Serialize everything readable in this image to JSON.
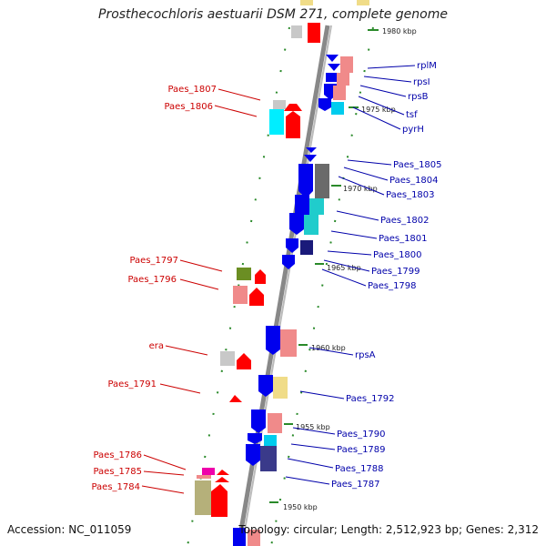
{
  "title": "Prosthecochloris aestuarii DSM 271, complete genome",
  "footer": {
    "accession": "Accession: NC_011059",
    "summary": "Topology: circular; Length: 2,512,923 bp; Genes: 2,312"
  },
  "colors": {
    "left_label": "#cc0000",
    "right_label": "#0000aa",
    "backbone": "#888888",
    "tick": "#2a8a2a"
  },
  "kbp_markers": [
    "1980 kbp",
    "1975 kbp",
    "1970 kbp",
    "1965 kbp",
    "1960 kbp",
    "1955 kbp",
    "1950 kbp"
  ],
  "left_labels": [
    "Paes_1807",
    "Paes_1806",
    "Paes_1797",
    "Paes_1796",
    "era",
    "Paes_1791",
    "Paes_1786",
    "Paes_1785",
    "Paes_1784"
  ],
  "right_labels": [
    "rplM",
    "rpsI",
    "rpsB",
    "tsf",
    "pyrH",
    "Paes_1805",
    "Paes_1804",
    "Paes_1803",
    "Paes_1802",
    "Paes_1801",
    "Paes_1800",
    "Paes_1799",
    "Paes_1798",
    "rpsA",
    "Paes_1792",
    "Paes_1790",
    "Paes_1789",
    "Paes_1788",
    "Paes_1787"
  ]
}
